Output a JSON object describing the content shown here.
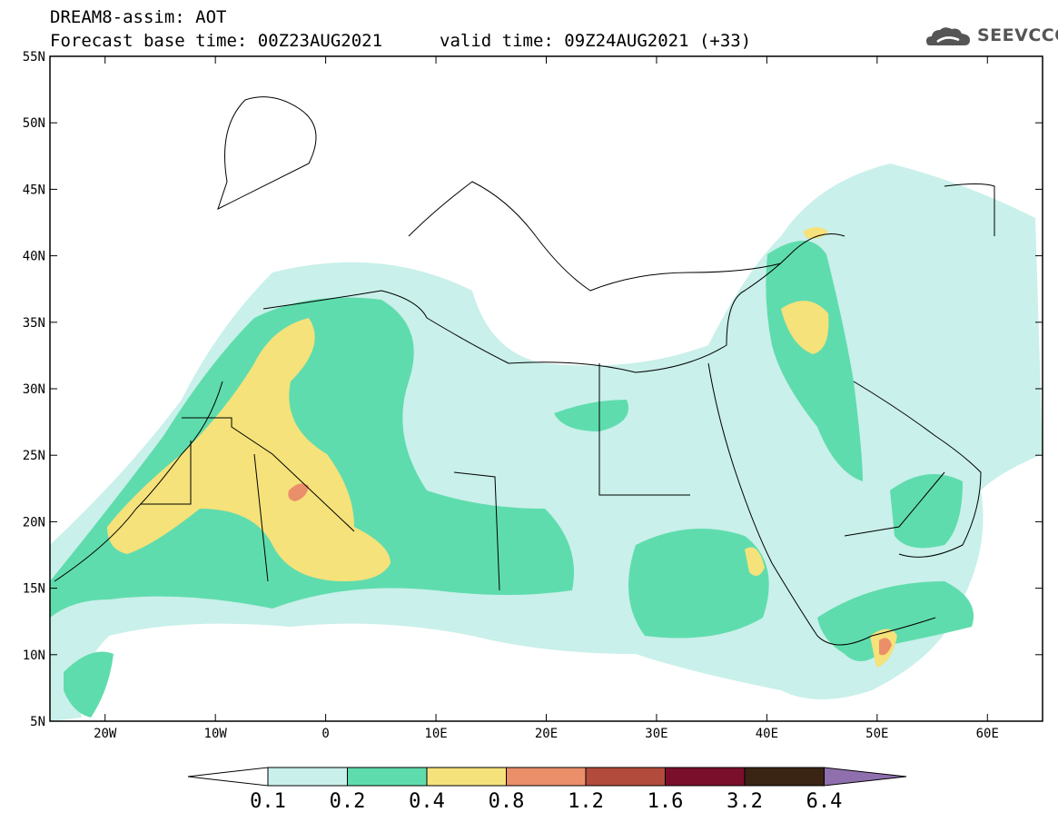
{
  "header": {
    "title": "DREAM8-assim: AOT",
    "base_time_label": "Forecast base time: 00Z23AUG2021",
    "valid_time_label": "valid time: 09Z24AUG2021 (+33)"
  },
  "logo": {
    "text": "SEEVCCC",
    "icon": "cloud-icon"
  },
  "map": {
    "lat_labels": [
      "55N",
      "50N",
      "45N",
      "40N",
      "35N",
      "30N",
      "25N",
      "20N",
      "15N",
      "10N",
      "5N"
    ],
    "lon_labels": [
      "20W",
      "10W",
      "0",
      "10E",
      "20E",
      "30E",
      "40E",
      "50E",
      "60E"
    ],
    "extent": {
      "lon": [
        -25,
        65
      ],
      "lat": [
        5,
        55
      ]
    }
  },
  "colorbar": {
    "ticks": [
      "0.1",
      "0.2",
      "0.4",
      "0.8",
      "1.2",
      "1.6",
      "3.2",
      "6.4"
    ],
    "colors": [
      "#c9f0ea",
      "#5fdcad",
      "#f5e27a",
      "#eb8f6a",
      "#b34b3c",
      "#7a0f2b",
      "#3a2414",
      "#8f6fae"
    ]
  }
}
